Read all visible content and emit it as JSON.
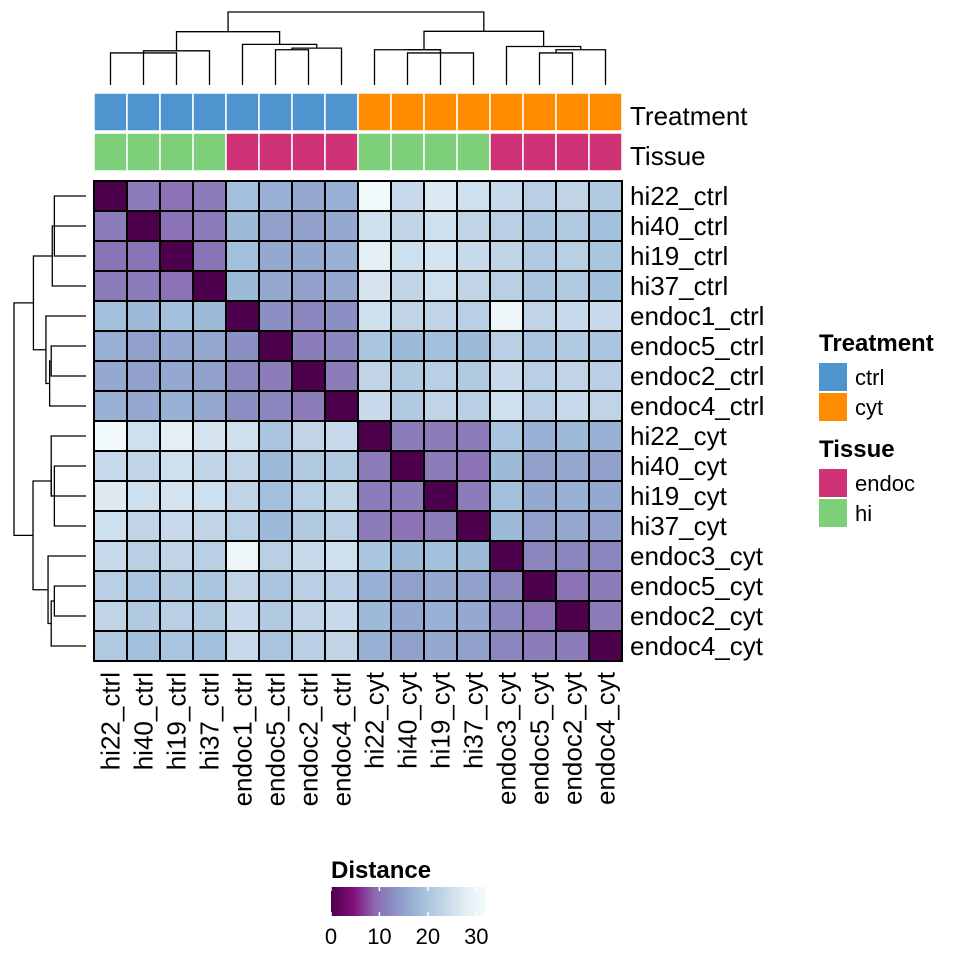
{
  "chart_data": {
    "type": "heatmap",
    "samples": [
      "hi22_ctrl",
      "hi40_ctrl",
      "hi19_ctrl",
      "hi37_ctrl",
      "endoc1_ctrl",
      "endoc5_ctrl",
      "endoc2_ctrl",
      "endoc4_ctrl",
      "hi22_cyt",
      "hi40_cyt",
      "hi19_cyt",
      "hi37_cyt",
      "endoc3_cyt",
      "endoc5_cyt",
      "endoc2_cyt",
      "endoc4_cyt"
    ],
    "treatment": [
      "ctrl",
      "ctrl",
      "ctrl",
      "ctrl",
      "ctrl",
      "ctrl",
      "ctrl",
      "ctrl",
      "cyt",
      "cyt",
      "cyt",
      "cyt",
      "cyt",
      "cyt",
      "cyt",
      "cyt"
    ],
    "tissue": [
      "hi",
      "hi",
      "hi",
      "hi",
      "endoc",
      "endoc",
      "endoc",
      "endoc",
      "hi",
      "hi",
      "hi",
      "hi",
      "endoc",
      "endoc",
      "endoc",
      "endoc"
    ],
    "values": [
      [
        0,
        11,
        10,
        11,
        19,
        17,
        16,
        17,
        31,
        24,
        27,
        25,
        24,
        22,
        23,
        21
      ],
      [
        11,
        0,
        10,
        11,
        18,
        15,
        15,
        16,
        25,
        23,
        25,
        23,
        22,
        20,
        21,
        19
      ],
      [
        10,
        10,
        0,
        10,
        19,
        16,
        16,
        17,
        28,
        25,
        26,
        24,
        23,
        21,
        22,
        20
      ],
      [
        11,
        11,
        10,
        0,
        18,
        16,
        15,
        16,
        26,
        23,
        25,
        23,
        22,
        20,
        21,
        19
      ],
      [
        19,
        18,
        19,
        18,
        0,
        13,
        12,
        13,
        25,
        23,
        23,
        22,
        30,
        23,
        24,
        24
      ],
      [
        17,
        15,
        16,
        16,
        13,
        0,
        11,
        12,
        20,
        18,
        19,
        18,
        22,
        20,
        21,
        20
      ],
      [
        16,
        15,
        16,
        15,
        12,
        11,
        0,
        11,
        23,
        21,
        22,
        21,
        24,
        22,
        23,
        22
      ],
      [
        17,
        16,
        17,
        16,
        13,
        12,
        11,
        0,
        24,
        21,
        23,
        22,
        25,
        22,
        24,
        23
      ],
      [
        31,
        25,
        28,
        26,
        25,
        20,
        23,
        24,
        0,
        11,
        11,
        11,
        20,
        17,
        18,
        17
      ],
      [
        24,
        23,
        25,
        23,
        23,
        18,
        21,
        21,
        11,
        0,
        11,
        10,
        18,
        15,
        16,
        15
      ],
      [
        27,
        25,
        26,
        25,
        23,
        19,
        22,
        23,
        11,
        11,
        0,
        11,
        19,
        16,
        17,
        16
      ],
      [
        25,
        23,
        24,
        23,
        22,
        18,
        21,
        22,
        11,
        10,
        11,
        0,
        18,
        15,
        16,
        15
      ],
      [
        24,
        22,
        23,
        22,
        30,
        22,
        24,
        25,
        20,
        18,
        19,
        18,
        0,
        12,
        12,
        12
      ],
      [
        22,
        20,
        21,
        20,
        23,
        20,
        22,
        22,
        17,
        15,
        16,
        15,
        12,
        0,
        10,
        11
      ],
      [
        23,
        21,
        22,
        21,
        24,
        21,
        23,
        24,
        18,
        16,
        17,
        16,
        12,
        10,
        0,
        11
      ],
      [
        21,
        19,
        20,
        19,
        24,
        20,
        22,
        23,
        17,
        15,
        16,
        15,
        12,
        11,
        11,
        0
      ]
    ],
    "annotation_labels": [
      "Treatment",
      "Tissue"
    ],
    "legend_treatment": {
      "title": "Treatment",
      "items": [
        {
          "label": "ctrl",
          "color": "#4e95cf"
        },
        {
          "label": "cyt",
          "color": "#ff8c00"
        }
      ]
    },
    "legend_tissue": {
      "title": "Tissue",
      "items": [
        {
          "label": "endoc",
          "color": "#cf3376"
        },
        {
          "label": "hi",
          "color": "#7dcf7a"
        }
      ]
    },
    "colorbar": {
      "title": "Distance",
      "ticks": [
        0,
        10,
        20,
        30
      ],
      "range": [
        0,
        32
      ],
      "colors": [
        "#4d004b",
        "#810f7c",
        "#8c6bb1",
        "#8c96c6",
        "#9ebcda",
        "#bfd3e6",
        "#e0ecf4",
        "#f7fcfd"
      ]
    }
  }
}
